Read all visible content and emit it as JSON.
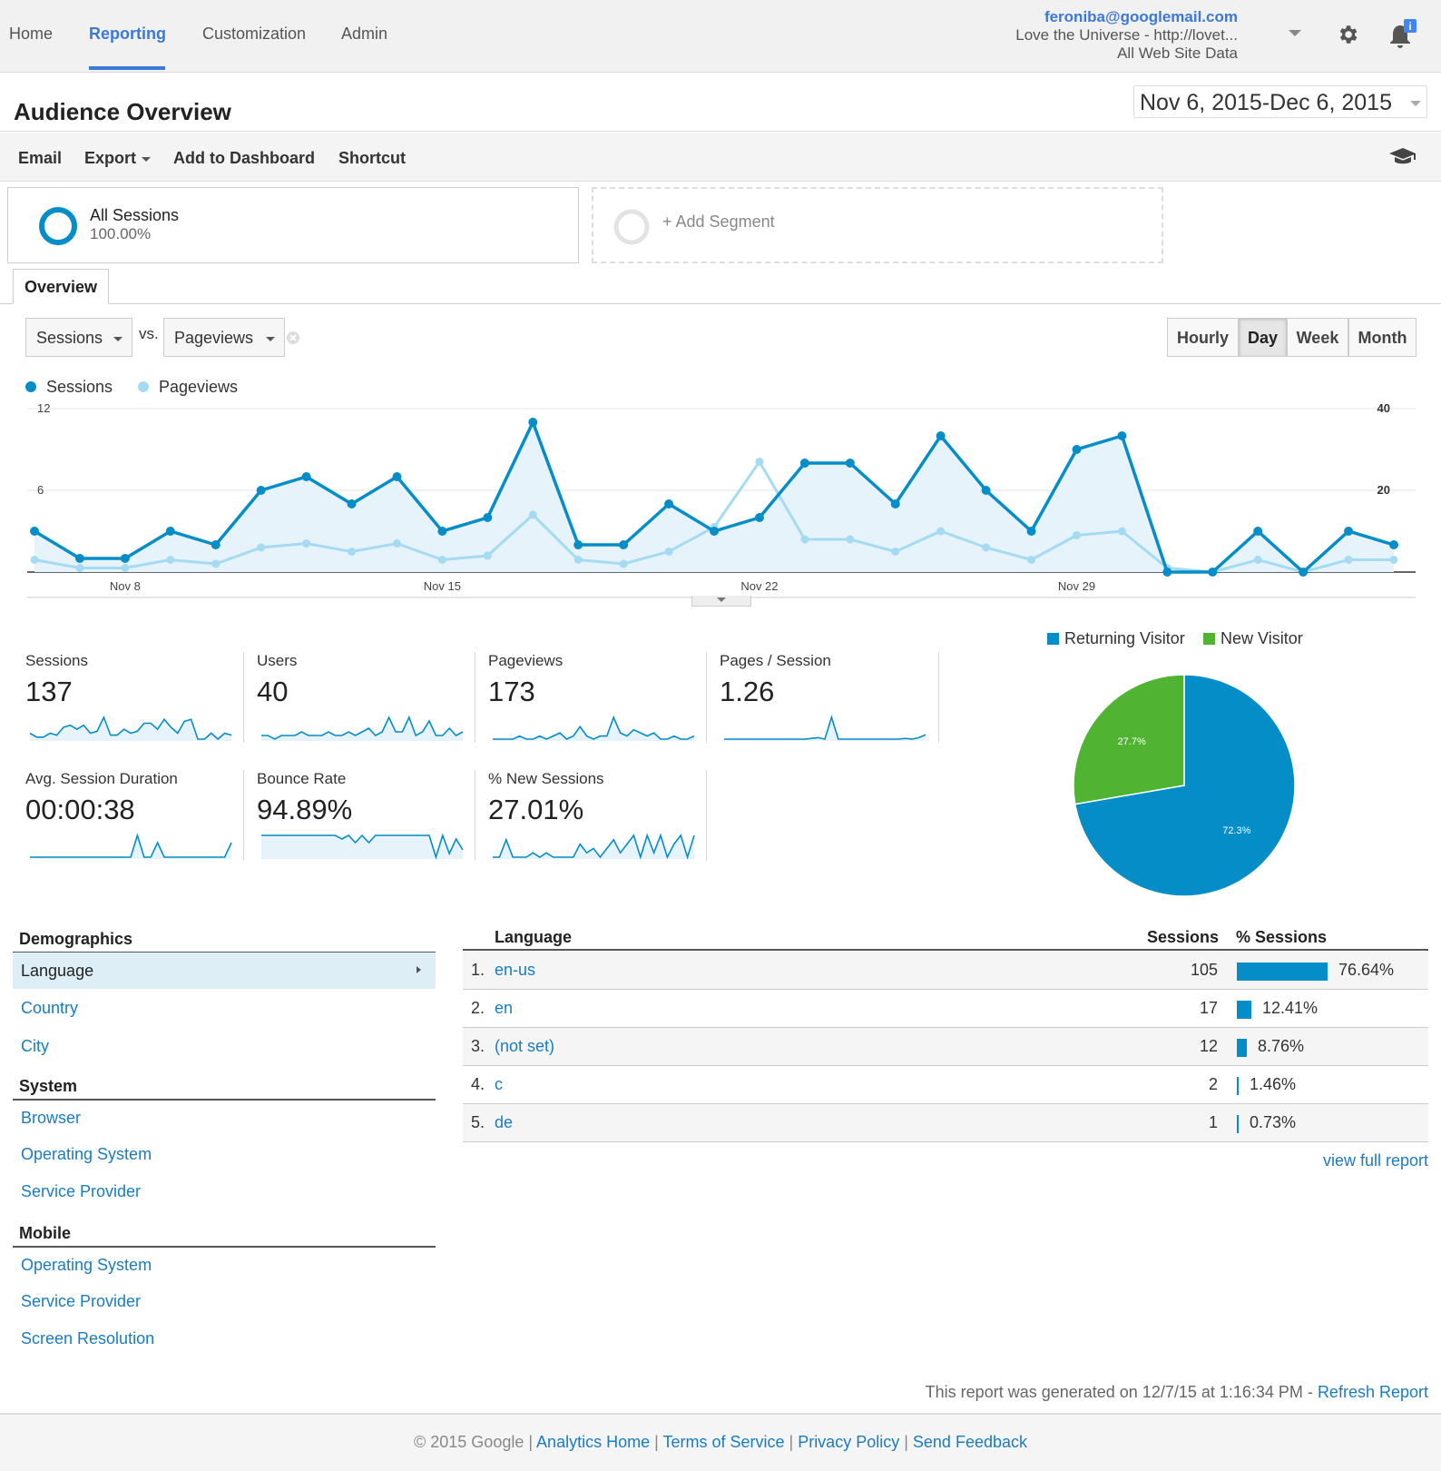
{
  "nav": {
    "items": [
      "Home",
      "Reporting",
      "Customization",
      "Admin"
    ],
    "active": "Reporting"
  },
  "account": {
    "email": "feroniba@googlemail.com",
    "property": "Love the Universe - http://lovet...",
    "view": "All Web Site Data"
  },
  "page": {
    "title": "Audience Overview",
    "date_start": "Nov 6, 2015",
    "date_sep": "-",
    "date_end": "Dec 6, 2015"
  },
  "toolbar": {
    "email": "Email",
    "export": "Export",
    "add_dashboard": "Add to Dashboard",
    "shortcut": "Shortcut"
  },
  "segments": {
    "all_label": "All Sessions",
    "all_pct": "100.00%",
    "add_label": "+ Add Segment"
  },
  "tabs": {
    "overview": "Overview"
  },
  "selectors": {
    "metric1": "Sessions",
    "vs": "vs.",
    "metric2": "Pageviews",
    "granularity": [
      "Hourly",
      "Day",
      "Week",
      "Month"
    ],
    "active_granularity": "Day"
  },
  "colors": {
    "sessions": "#058dc7",
    "pageviews": "#a5dbf2",
    "returning": "#058dc7",
    "new": "#50b432",
    "link": "#1a7cbf"
  },
  "chart_data": [
    {
      "type": "line",
      "series": [
        {
          "name": "Sessions",
          "axis": "left",
          "values": [
            3,
            1,
            1,
            3,
            2,
            6,
            7,
            5,
            7,
            3,
            4,
            11,
            2,
            2,
            5,
            3,
            4,
            8,
            8,
            5,
            10,
            6,
            3,
            9,
            10,
            0,
            0,
            3,
            0,
            3,
            2
          ]
        },
        {
          "name": "Pageviews",
          "axis": "right",
          "values": [
            3,
            1,
            1,
            3,
            2,
            6,
            7,
            5,
            7,
            3,
            4,
            14,
            3,
            2,
            5,
            11,
            27,
            8,
            8,
            5,
            10,
            6,
            3,
            9,
            10,
            1,
            0,
            3,
            0,
            3,
            3
          ]
        }
      ],
      "x_tick_labels": [
        "Nov 8",
        "Nov 15",
        "Nov 22",
        "Nov 29"
      ],
      "x_tick_index": [
        2,
        9,
        16,
        23
      ],
      "y_left_ticks": [
        "6",
        "12"
      ],
      "y_right_ticks": [
        "20",
        "40"
      ],
      "ylim_left": [
        0,
        12
      ],
      "ylim_right": [
        0,
        40
      ],
      "grid": true,
      "legend": "top-left"
    },
    {
      "type": "pie",
      "categories": [
        "Returning Visitor",
        "New Visitor"
      ],
      "values": [
        72.3,
        27.7
      ],
      "data_labels": [
        "72.3%",
        "27.7%"
      ],
      "legend": "top"
    }
  ],
  "metrics": [
    {
      "label": "Sessions",
      "value": "137",
      "spark": [
        3,
        1,
        1,
        3,
        2,
        6,
        7,
        5,
        7,
        3,
        4,
        11,
        2,
        2,
        5,
        3,
        4,
        8,
        8,
        5,
        10,
        6,
        3,
        9,
        10,
        0,
        0,
        3,
        0,
        3,
        2
      ]
    },
    {
      "label": "Users",
      "value": "40",
      "spark": [
        1,
        1,
        0,
        1,
        1,
        1,
        2,
        1,
        1,
        1,
        2,
        1,
        1,
        2,
        1,
        2,
        3,
        1,
        2,
        6,
        2,
        2,
        6,
        1,
        2,
        5,
        1,
        1,
        3,
        1,
        2
      ]
    },
    {
      "label": "Pageviews",
      "value": "173",
      "spark": [
        1,
        1,
        1,
        1,
        2,
        1,
        1,
        2,
        1,
        2,
        3,
        1,
        2,
        5,
        2,
        1,
        2,
        2,
        8,
        3,
        2,
        4,
        3,
        2,
        3,
        1,
        1,
        2,
        1,
        1,
        2
      ]
    },
    {
      "label": "Pages / Session",
      "value": "1.26",
      "spark": [
        1,
        1,
        1,
        1,
        1,
        1,
        1,
        1,
        1,
        1,
        1,
        1,
        1,
        1.05,
        1.1,
        1,
        2.5,
        1,
        1,
        1,
        1,
        1,
        1,
        1,
        1,
        1,
        1,
        1.05,
        1,
        1.1,
        1.3
      ]
    },
    {
      "label": "Avg. Session Duration",
      "value": "00:00:38",
      "spark": [
        0,
        0,
        0,
        0,
        0,
        0,
        0,
        0,
        0,
        0,
        0,
        0,
        0,
        0,
        0,
        0,
        3,
        0,
        0,
        2,
        0,
        0,
        0,
        0,
        0,
        0,
        0,
        0,
        0,
        0,
        2
      ]
    },
    {
      "label": "Bounce Rate",
      "value": "94.89%",
      "spark": [
        6,
        6,
        6,
        6,
        6,
        6,
        6,
        6,
        6,
        6,
        6,
        6,
        5,
        6,
        4,
        6,
        4,
        6,
        6,
        6,
        6,
        6,
        6,
        6,
        6,
        6,
        0,
        6,
        1,
        5,
        2
      ]
    },
    {
      "label": "% New Sessions",
      "value": "27.01%",
      "spark": [
        1,
        1,
        5,
        1,
        1,
        1,
        2,
        1,
        2,
        1,
        1,
        1,
        1,
        4,
        2,
        3,
        1,
        3,
        5,
        2,
        4,
        6,
        1,
        6,
        2,
        6,
        1,
        4,
        6,
        1,
        6
      ]
    }
  ],
  "demographics": {
    "sections": [
      {
        "title": "Demographics",
        "items": [
          "Language",
          "Country",
          "City"
        ]
      },
      {
        "title": "System",
        "items": [
          "Browser",
          "Operating System",
          "Service Provider"
        ]
      },
      {
        "title": "Mobile",
        "items": [
          "Operating System",
          "Service Provider",
          "Screen Resolution"
        ]
      }
    ],
    "active_item": "Language"
  },
  "table": {
    "headers": {
      "dimension": "Language",
      "sessions": "Sessions",
      "pct": "% Sessions"
    },
    "rows": [
      {
        "rank": "1.",
        "name": "en-us",
        "sessions": "105",
        "pct": "76.64%",
        "pct_value": 76.64
      },
      {
        "rank": "2.",
        "name": "en",
        "sessions": "17",
        "pct": "12.41%",
        "pct_value": 12.41
      },
      {
        "rank": "3.",
        "name": "(not set)",
        "sessions": "12",
        "pct": "8.76%",
        "pct_value": 8.76
      },
      {
        "rank": "4.",
        "name": "c",
        "sessions": "2",
        "pct": "1.46%",
        "pct_value": 1.46
      },
      {
        "rank": "5.",
        "name": "de",
        "sessions": "1",
        "pct": "0.73%",
        "pct_value": 0.73
      }
    ],
    "view_full": "view full report"
  },
  "report": {
    "generated": "This report was generated on 12/7/15 at 1:16:34 PM - ",
    "refresh": "Refresh Report"
  },
  "footer": {
    "copyright": "© 2015 Google",
    "sep": " | ",
    "links": [
      "Analytics Home",
      "Terms of Service",
      "Privacy Policy",
      "Send Feedback"
    ]
  }
}
